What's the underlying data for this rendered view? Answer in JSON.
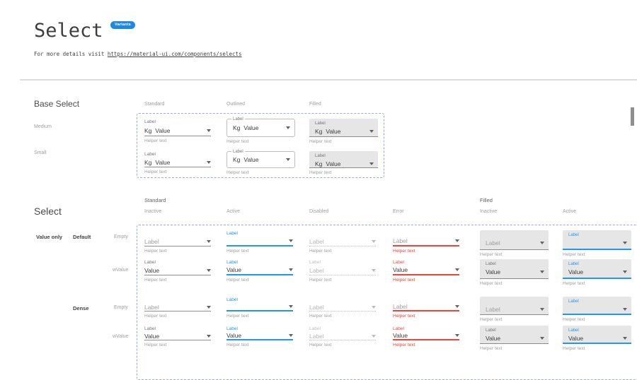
{
  "header": {
    "title": "Select",
    "badge": "Variants",
    "subtitle_prefix": "For more details visit ",
    "subtitle_link": "https://material-ui.com/components/selects"
  },
  "base_select": {
    "title": "Base Select",
    "columns": [
      "Standard",
      "Outlined",
      "Filled"
    ],
    "rows": [
      "Medium",
      "Small"
    ]
  },
  "select_matrix": {
    "title": "Select",
    "group_standard": "Standard",
    "group_filled": "Filled",
    "columns": [
      "Inactive",
      "Active",
      "Disabled",
      "Error",
      "Inactive",
      "Active"
    ],
    "row_group": "Value only",
    "section_default": "Default",
    "section_dense": "Dense",
    "row_empty": "Empty",
    "row_wvalue": "wValue"
  },
  "select_cell": {
    "label": "Label",
    "value": "Value",
    "disabled_value": "Label",
    "adornment": "Kg",
    "helper": "Helper text"
  },
  "colors": {
    "accent": "#2196f3",
    "error": "#f44336",
    "badge_bg": "#1e88e5",
    "filled_bg": "#e6e6e6",
    "spec_border": "#9fa8da"
  }
}
